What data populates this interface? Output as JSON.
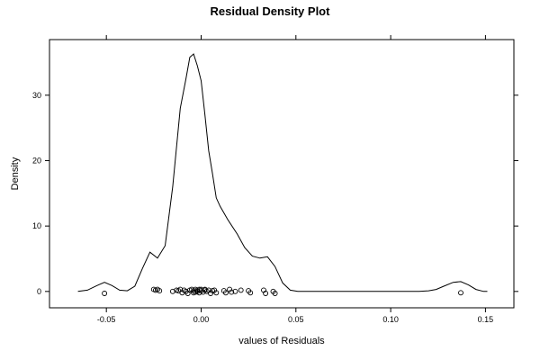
{
  "chart_data": {
    "type": "line",
    "title": "Residual Density Plot",
    "xlabel": "values of Residuals",
    "ylabel": "Density",
    "xlim": [
      -0.08,
      0.165
    ],
    "ylim": [
      -2.5,
      38.5
    ],
    "x_ticks": [
      -0.05,
      0.0,
      0.05,
      0.1,
      0.15
    ],
    "x_tick_labels": [
      "-0.05",
      "0.00",
      "0.05",
      "0.10",
      "0.15"
    ],
    "y_ticks": [
      0,
      10,
      20,
      30
    ],
    "y_tick_labels": [
      "0",
      "10",
      "20",
      "30"
    ],
    "grid": false,
    "series": [
      {
        "kind": "density",
        "x": [
          -0.065,
          -0.06,
          -0.055,
          -0.051,
          -0.047,
          -0.043,
          -0.039,
          -0.035,
          -0.031,
          -0.027,
          -0.023,
          -0.019,
          -0.015,
          -0.011,
          -0.008,
          -0.006,
          -0.004,
          -0.002,
          0.0,
          0.002,
          0.004,
          0.006,
          0.008,
          0.01,
          0.014,
          0.019,
          0.023,
          0.027,
          0.031,
          0.035,
          0.039,
          0.043,
          0.047,
          0.051,
          0.056,
          0.065,
          0.075,
          0.085,
          0.095,
          0.105,
          0.115,
          0.12,
          0.124,
          0.128,
          0.133,
          0.137,
          0.141,
          0.145,
          0.149,
          0.151
        ],
        "y": [
          0,
          0.2,
          0.9,
          1.4,
          0.9,
          0.2,
          0.1,
          0.8,
          3.5,
          6.0,
          5.1,
          7.0,
          16.0,
          28.0,
          32.5,
          35.8,
          36.3,
          34.5,
          32.2,
          27.0,
          21.5,
          18.0,
          14.3,
          13.0,
          11.0,
          8.8,
          6.7,
          5.4,
          5.1,
          5.3,
          3.8,
          1.3,
          0.2,
          0.0,
          0,
          0,
          0,
          0,
          0,
          0,
          0,
          0.1,
          0.3,
          0.8,
          1.4,
          1.5,
          1.0,
          0.3,
          0.0,
          0
        ]
      },
      {
        "kind": "rug",
        "x": [
          -0.051,
          -0.025,
          -0.024,
          -0.023,
          -0.022,
          -0.015,
          -0.013,
          -0.012,
          -0.011,
          -0.01,
          -0.009,
          -0.008,
          -0.007,
          -0.006,
          -0.005,
          -0.004,
          -0.004,
          -0.003,
          -0.003,
          -0.002,
          -0.002,
          -0.001,
          -0.001,
          0.0,
          0.0,
          0.001,
          0.002,
          0.002,
          0.003,
          0.004,
          0.005,
          0.006,
          0.007,
          0.008,
          0.012,
          0.013,
          0.015,
          0.016,
          0.018,
          0.021,
          0.025,
          0.026,
          0.033,
          0.034,
          0.038,
          0.039,
          0.137
        ],
        "y": [
          -0.3,
          0.3,
          0.2,
          0.3,
          0.1,
          0.0,
          0.2,
          0.1,
          0.3,
          -0.2,
          0.2,
          0.0,
          -0.3,
          0.2,
          0.3,
          -0.2,
          0.1,
          0.3,
          -0.1,
          0.2,
          0.0,
          0.3,
          -0.2,
          0.1,
          0.3,
          -0.1,
          0.2,
          0.3,
          0.0,
          0.2,
          -0.3,
          0.1,
          0.2,
          -0.2,
          0.1,
          -0.2,
          0.3,
          -0.1,
          0.0,
          0.2,
          0.1,
          -0.2,
          0.2,
          -0.3,
          0.0,
          -0.3,
          -0.2
        ]
      }
    ]
  }
}
